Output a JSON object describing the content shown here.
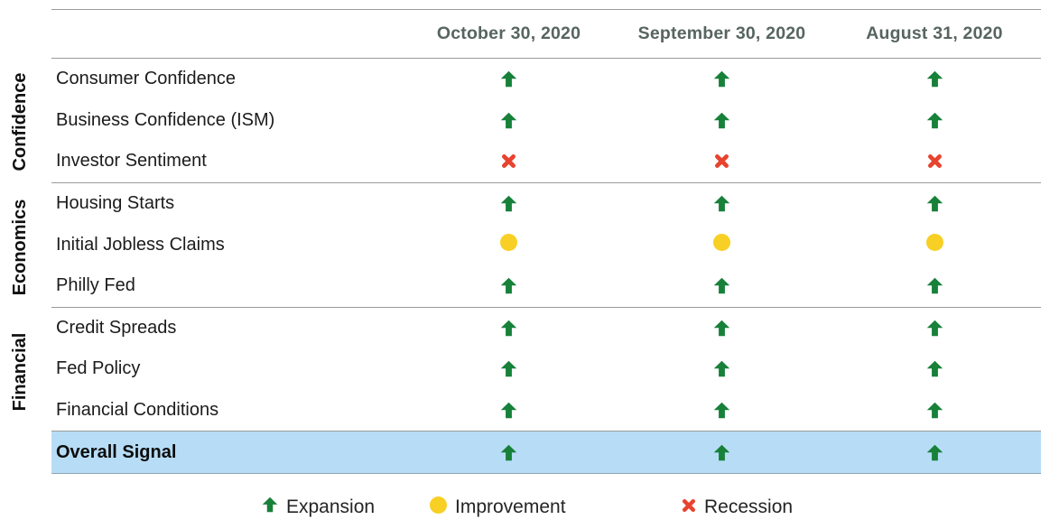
{
  "chart_data": {
    "type": "table",
    "columns": [
      "October 30, 2020",
      "September 30, 2020",
      "August 31, 2020"
    ],
    "row_groups": [
      {
        "label": "Confidence",
        "rows": [
          {
            "label": "Consumer Confidence",
            "signals": [
              "expansion",
              "expansion",
              "expansion"
            ]
          },
          {
            "label": "Business Confidence (ISM)",
            "signals": [
              "expansion",
              "expansion",
              "expansion"
            ]
          },
          {
            "label": "Investor Sentiment",
            "signals": [
              "recession",
              "recession",
              "recession"
            ]
          }
        ]
      },
      {
        "label": "Economics",
        "rows": [
          {
            "label": "Housing Starts",
            "signals": [
              "expansion",
              "expansion",
              "expansion"
            ]
          },
          {
            "label": "Initial Jobless Claims",
            "signals": [
              "improvement",
              "improvement",
              "improvement"
            ]
          },
          {
            "label": "Philly Fed",
            "signals": [
              "expansion",
              "expansion",
              "expansion"
            ]
          }
        ]
      },
      {
        "label": "Financial",
        "rows": [
          {
            "label": "Credit Spreads",
            "signals": [
              "expansion",
              "expansion",
              "expansion"
            ]
          },
          {
            "label": "Fed Policy",
            "signals": [
              "expansion",
              "expansion",
              "expansion"
            ]
          },
          {
            "label": "Financial Conditions",
            "signals": [
              "expansion",
              "expansion",
              "expansion"
            ]
          }
        ]
      }
    ],
    "overall_row": {
      "label": "Overall Signal",
      "signals": [
        "expansion",
        "expansion",
        "expansion"
      ]
    },
    "legend": [
      {
        "symbol": "up-arrow",
        "label": "Expansion",
        "color": "#17813A"
      },
      {
        "symbol": "circle",
        "label": "Improvement",
        "color": "#F8CF24"
      },
      {
        "symbol": "x-cross",
        "label": "Recession",
        "color": "#E8432F"
      }
    ],
    "colors": {
      "expansion": "#17813A",
      "improvement": "#F8CF24",
      "recession": "#E8432F",
      "overall_row_bg": "#B7DDF6",
      "header_text": "#57655F",
      "grid_line": "#9B9B9B"
    }
  }
}
